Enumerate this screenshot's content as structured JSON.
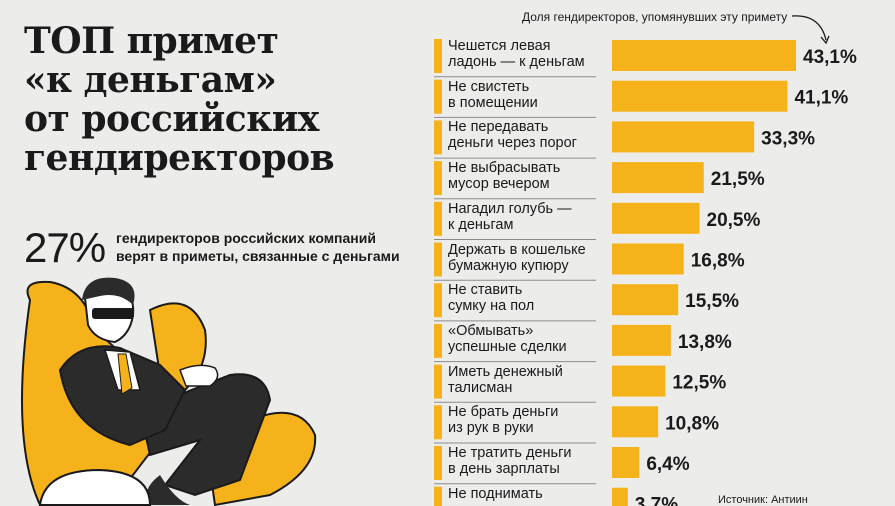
{
  "header": {
    "title_lines": [
      "ТОП примет",
      "«к деньгам»",
      "от российских",
      "гендиректоров"
    ]
  },
  "stat": {
    "value": "27%",
    "text_lines": [
      "гендиректоров российских компаний",
      "верят в приметы, связанные с деньгами"
    ]
  },
  "legend_note": "Доля гендиректоров, упомянувших эту примету",
  "source": "Источник: Антиин",
  "colors": {
    "bar": "#f6b21b",
    "marker": "#f6b21b",
    "background": "#ececeb",
    "text": "#1a1a1a",
    "separator": "#8c8c8c"
  },
  "chart_data": {
    "type": "bar",
    "orientation": "horizontal",
    "categories": [
      [
        "Чешется левая",
        "ладонь — к деньгам"
      ],
      [
        "Не свистеть",
        "в помещении"
      ],
      [
        "Не передавать",
        "деньги через порог"
      ],
      [
        "Не выбрасывать",
        "мусор вечером"
      ],
      [
        "Нагадил голубь —",
        "к деньгам"
      ],
      [
        "Держать в кошельке",
        "бумажную купюру"
      ],
      [
        "Не ставить",
        "сумку на пол"
      ],
      [
        "«Обмывать»",
        "успешные сделки"
      ],
      [
        "Иметь денежный",
        "талисман"
      ],
      [
        "Не брать деньги",
        "из рук в руки"
      ],
      [
        "Не тратить деньги",
        "в день зарплаты"
      ],
      [
        "Не поднимать",
        ""
      ]
    ],
    "values": [
      43.1,
      41.1,
      33.3,
      21.5,
      20.5,
      16.8,
      15.5,
      13.8,
      12.5,
      10.8,
      6.4,
      3.7
    ],
    "value_labels": [
      "43,1%",
      "41,1%",
      "33,3%",
      "21,5%",
      "20,5%",
      "16,8%",
      "15,5%",
      "13,8%",
      "12,5%",
      "10,8%",
      "6,4%",
      "3,7%"
    ],
    "xlim": [
      0,
      43.1
    ]
  }
}
